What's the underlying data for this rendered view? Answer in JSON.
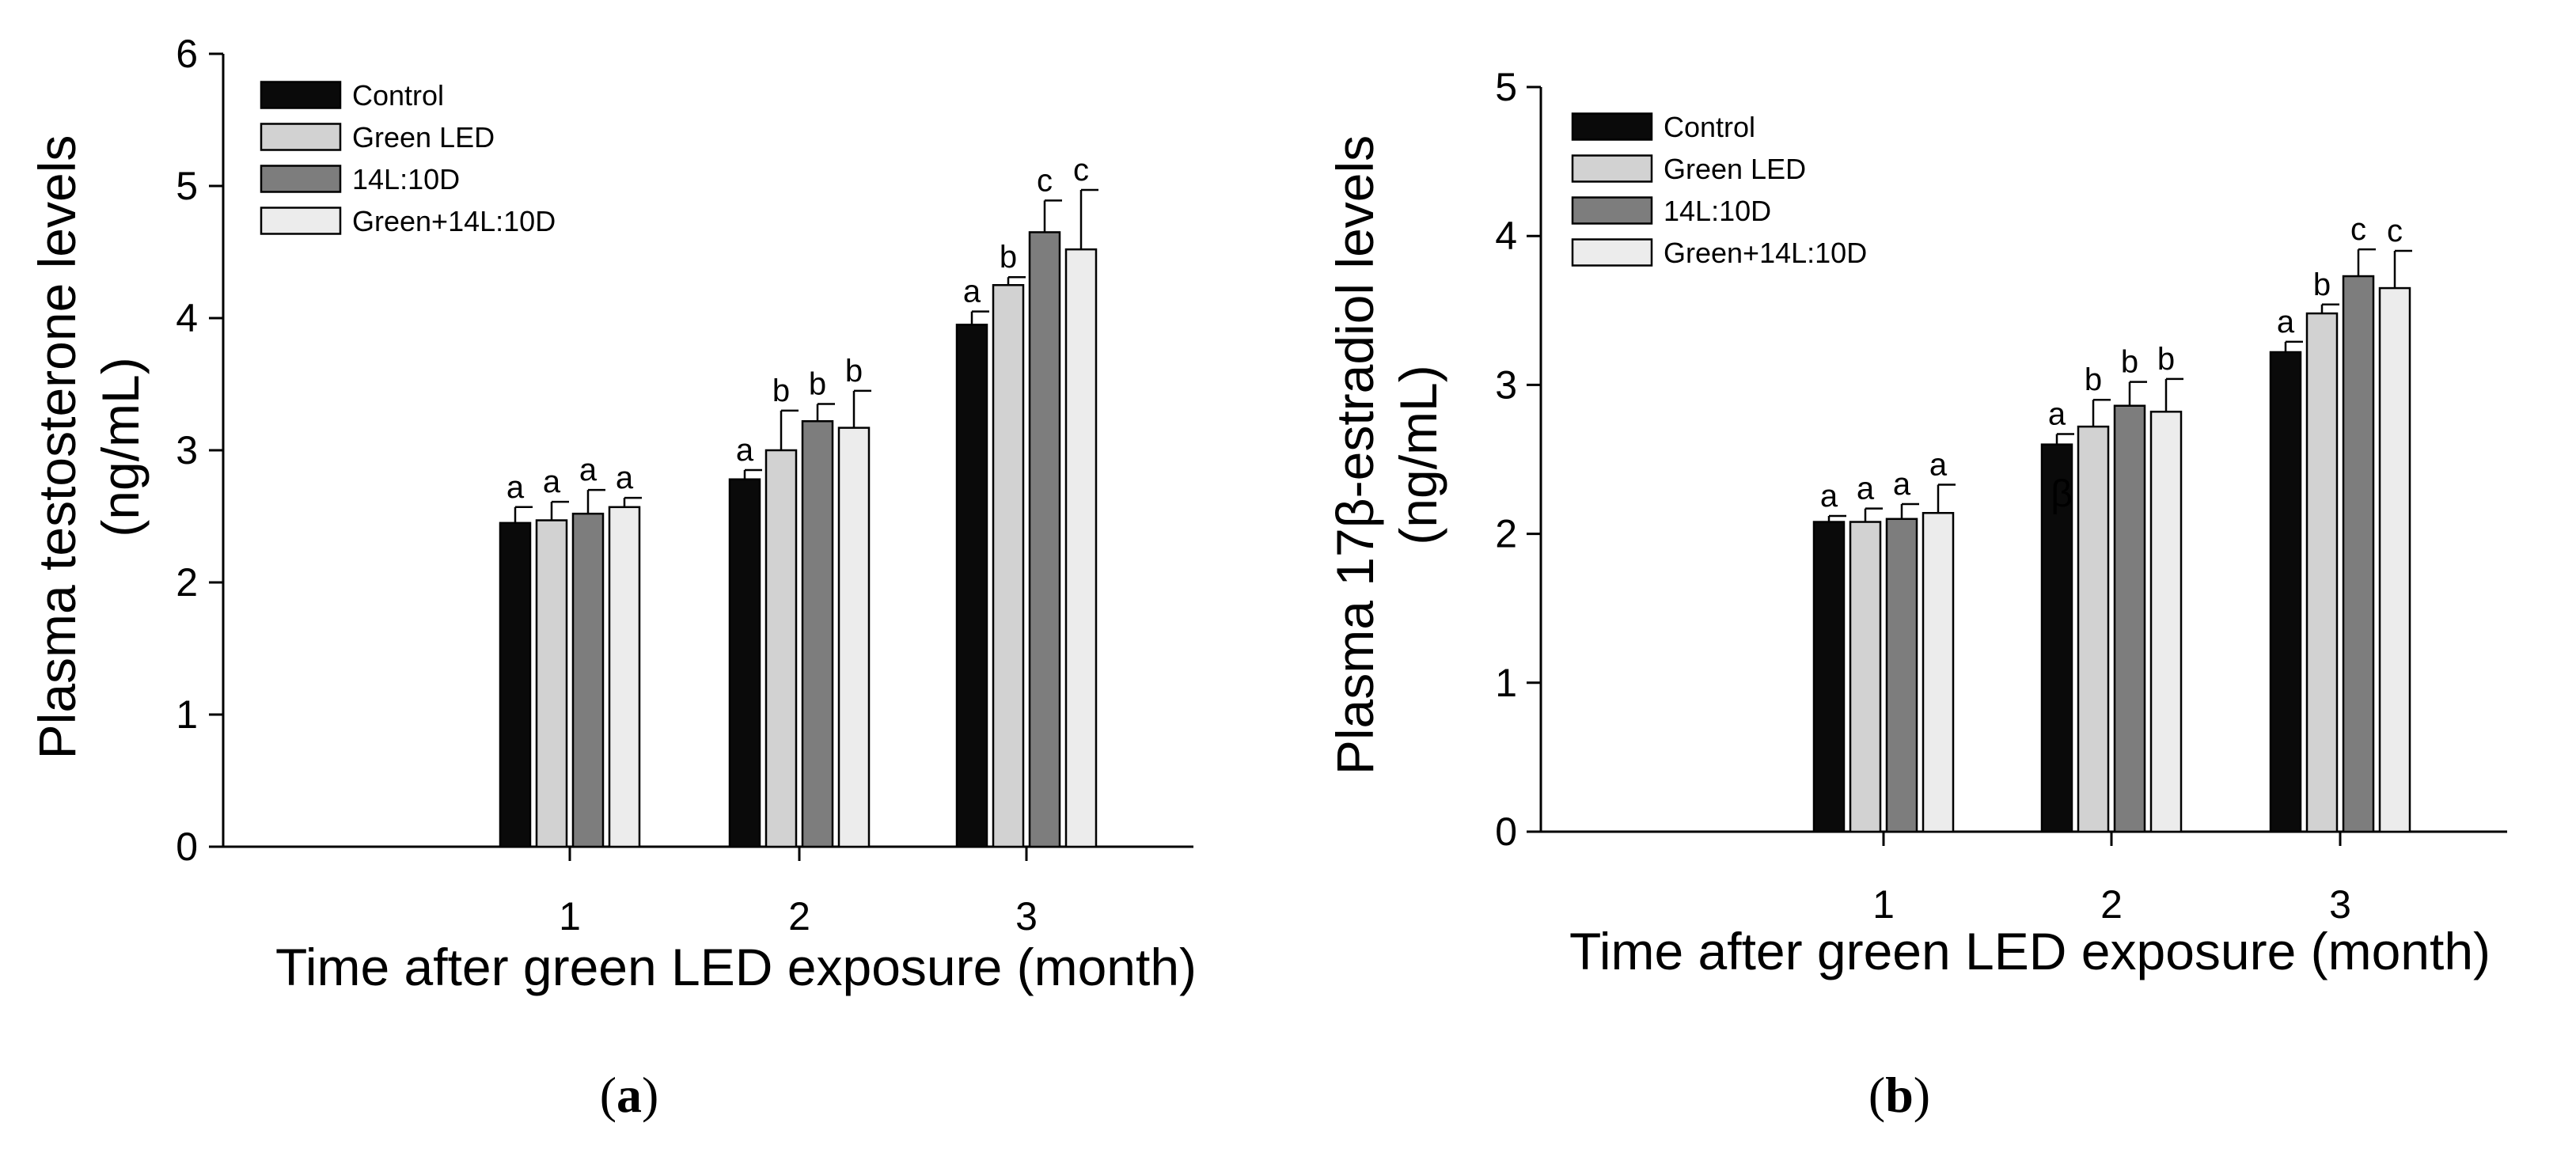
{
  "colors": {
    "Control": "#0a0a0a",
    "Green LED": "#d2d2d2",
    "14L:10D": "#7d7d7d",
    "Green+14L:10D": "#ececec"
  },
  "chart_data": [
    {
      "type": "bar",
      "panel_label_open": "(",
      "panel_label_letter": "a",
      "panel_label_close": ")",
      "categories": [
        "1",
        "2",
        "3"
      ],
      "xlabel": "Time after green LED exposure (month)",
      "ylabel_line1": "Plasma testosterone levels",
      "ylabel_line2": "(ng/mL)",
      "ylim": [
        0,
        6
      ],
      "yticks": [
        0,
        1,
        2,
        3,
        4,
        5,
        6
      ],
      "legend": [
        "Control",
        "Green LED",
        "14L:10D",
        "Green+14L:10D"
      ],
      "legend_position": "top-left",
      "series": [
        {
          "name": "Control",
          "values": [
            2.45,
            2.78,
            3.95
          ],
          "errors": [
            0.12,
            0.07,
            0.1
          ],
          "labels": [
            "a",
            "a",
            "a"
          ]
        },
        {
          "name": "Green LED",
          "values": [
            2.47,
            3.0,
            4.25
          ],
          "errors": [
            0.14,
            0.3,
            0.06
          ],
          "labels": [
            "a",
            "b",
            "b"
          ]
        },
        {
          "name": "14L:10D",
          "values": [
            2.52,
            3.22,
            4.65
          ],
          "errors": [
            0.18,
            0.13,
            0.24
          ],
          "labels": [
            "a",
            "b",
            "c"
          ]
        },
        {
          "name": "Green+14L:10D",
          "values": [
            2.57,
            3.17,
            4.52
          ],
          "errors": [
            0.07,
            0.28,
            0.45
          ],
          "labels": [
            "a",
            "b",
            "c"
          ]
        }
      ]
    },
    {
      "type": "bar",
      "panel_label_open": "(",
      "panel_label_letter": "b",
      "panel_label_close": ")",
      "categories": [
        "1",
        "2",
        "3"
      ],
      "xlabel": "Time after green LED exposure (month)",
      "ylabel_line1": "Plasma 17β-estradiol levels",
      "ylabel_line2": "(ng/mL)",
      "ylim": [
        0,
        5
      ],
      "yticks": [
        0,
        1,
        2,
        3,
        4,
        5
      ],
      "legend": [
        "Control",
        "Green LED",
        "14L:10D",
        "Green+14L:10D"
      ],
      "legend_position": "top-left",
      "series": [
        {
          "name": "Control",
          "values": [
            2.08,
            2.6,
            3.22
          ],
          "errors": [
            0.04,
            0.07,
            0.07
          ],
          "labels": [
            "a",
            "a",
            "a"
          ]
        },
        {
          "name": "Green LED",
          "values": [
            2.08,
            2.72,
            3.48
          ],
          "errors": [
            0.09,
            0.18,
            0.06
          ],
          "labels": [
            "a",
            "b",
            "b"
          ]
        },
        {
          "name": "14L:10D",
          "values": [
            2.1,
            2.86,
            3.73
          ],
          "errors": [
            0.1,
            0.16,
            0.18
          ],
          "labels": [
            "a",
            "b",
            "c"
          ]
        },
        {
          "name": "Green+14L:10D",
          "values": [
            2.14,
            2.82,
            3.65
          ],
          "errors": [
            0.19,
            0.22,
            0.25
          ],
          "labels": [
            "a",
            "b",
            "c"
          ]
        }
      ],
      "annotation": "β"
    }
  ]
}
